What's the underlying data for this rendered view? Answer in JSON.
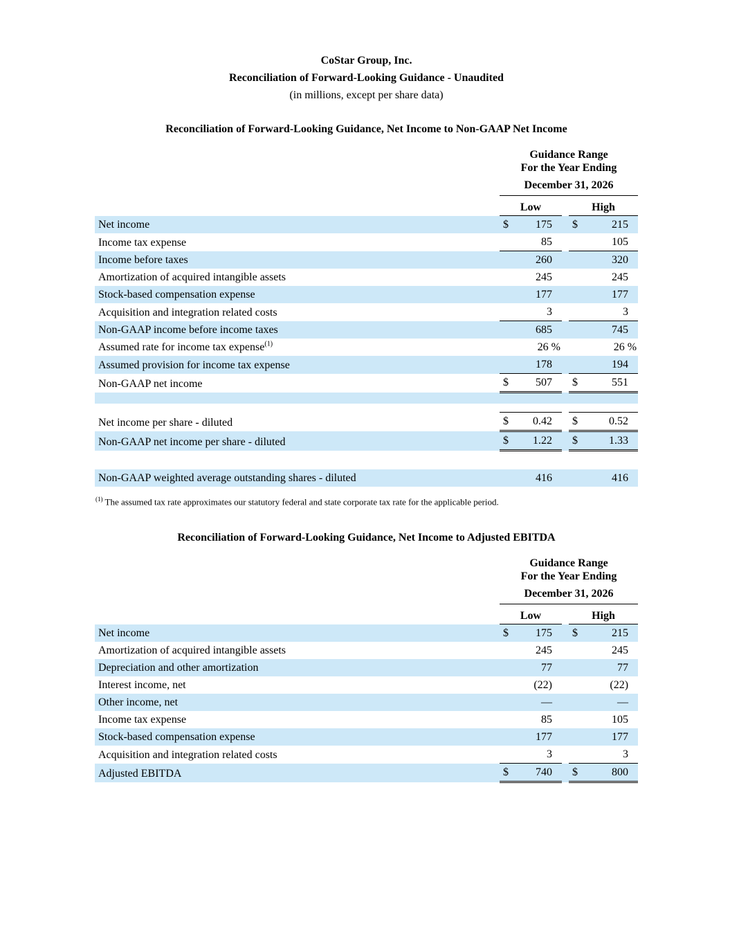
{
  "colors": {
    "row_shade": "#cde8f8"
  },
  "doc_header": {
    "company": "CoStar Group, Inc.",
    "title": "Reconciliation of Forward-Looking Guidance - Unaudited",
    "note": "(in millions, except per share data)"
  },
  "table1": {
    "heading": "Reconciliation of Forward-Looking Guidance, Net Income to Non-GAAP Net Income",
    "header": {
      "line1": "Guidance Range",
      "line2": "For the Year Ending",
      "line3": "December 31, 2026",
      "low": "Low",
      "high": "High"
    },
    "rows": [
      {
        "label": "Net income",
        "low_symbol": "$",
        "low": "175",
        "high_symbol": "$",
        "high": "215",
        "shaded": true
      },
      {
        "label": "Income tax expense",
        "low": "85",
        "high": "105",
        "rule": "single"
      },
      {
        "label": "Income before taxes",
        "low": "260",
        "high": "320",
        "shaded": true
      },
      {
        "label": "Amortization of acquired intangible assets",
        "low": "245",
        "high": "245"
      },
      {
        "label": "Stock-based compensation expense",
        "low": "177",
        "high": "177",
        "shaded": true
      },
      {
        "label": "Acquisition and integration related costs",
        "low": "3",
        "high": "3",
        "rule": "single"
      },
      {
        "label": "Non-GAAP income before income taxes",
        "low": "685",
        "high": "745",
        "shaded": true
      },
      {
        "label": "Assumed rate for income tax expense",
        "label_sup": "(1)",
        "low": "26 %",
        "high": "26 %"
      },
      {
        "label": "Assumed provision for income tax expense",
        "low": "178",
        "high": "194",
        "shaded": true,
        "rule": "single"
      },
      {
        "label": "Non-GAAP net income",
        "low_symbol": "$",
        "low": "507",
        "high_symbol": "$",
        "high": "551",
        "rule": "double"
      },
      {
        "spacer_height": 15,
        "shaded": true
      },
      {
        "spacer_height": 12
      },
      {
        "label": "Net income per share - diluted",
        "low_symbol": "$",
        "low": "0.42",
        "high_symbol": "$",
        "high": "0.52",
        "rule": "double",
        "rule_top": true
      },
      {
        "label": "Non-GAAP net income per share - diluted",
        "low_symbol": "$",
        "low": "1.22",
        "high_symbol": "$",
        "high": "1.33",
        "shaded": true,
        "rule": "double"
      },
      {
        "spacer_height": 26
      },
      {
        "label": "Non-GAAP weighted average outstanding shares - diluted",
        "low": "416",
        "high": "416",
        "shaded": true
      }
    ]
  },
  "footnote": {
    "marker": "(1)",
    "text": "The assumed tax rate approximates our statutory federal and state corporate tax rate for the applicable period."
  },
  "table2": {
    "heading": "Reconciliation of Forward-Looking Guidance, Net Income to Adjusted EBITDA",
    "header": {
      "line1": "Guidance Range",
      "line2": "For the Year Ending",
      "line3": "December 31, 2026",
      "low": "Low",
      "high": "High"
    },
    "rows": [
      {
        "label": "Net income",
        "low_symbol": "$",
        "low": "175",
        "high_symbol": "$",
        "high": "215",
        "shaded": true
      },
      {
        "label": "Amortization of acquired intangible assets",
        "low": "245",
        "high": "245"
      },
      {
        "label": "Depreciation and other amortization",
        "low": "77",
        "high": "77",
        "shaded": true
      },
      {
        "label": "Interest income, net",
        "low": "(22)",
        "high": "(22)"
      },
      {
        "label": "Other income, net",
        "low": "—",
        "high": "—",
        "shaded": true
      },
      {
        "label": "Income tax expense",
        "low": "85",
        "high": "105"
      },
      {
        "label": "Stock-based compensation expense",
        "low": "177",
        "high": "177",
        "shaded": true
      },
      {
        "label": "Acquisition and integration related costs",
        "low": "3",
        "high": "3",
        "rule": "single"
      },
      {
        "label": "Adjusted EBITDA",
        "low_symbol": "$",
        "low": "740",
        "high_symbol": "$",
        "high": "800",
        "shaded": true,
        "rule": "double"
      }
    ]
  }
}
